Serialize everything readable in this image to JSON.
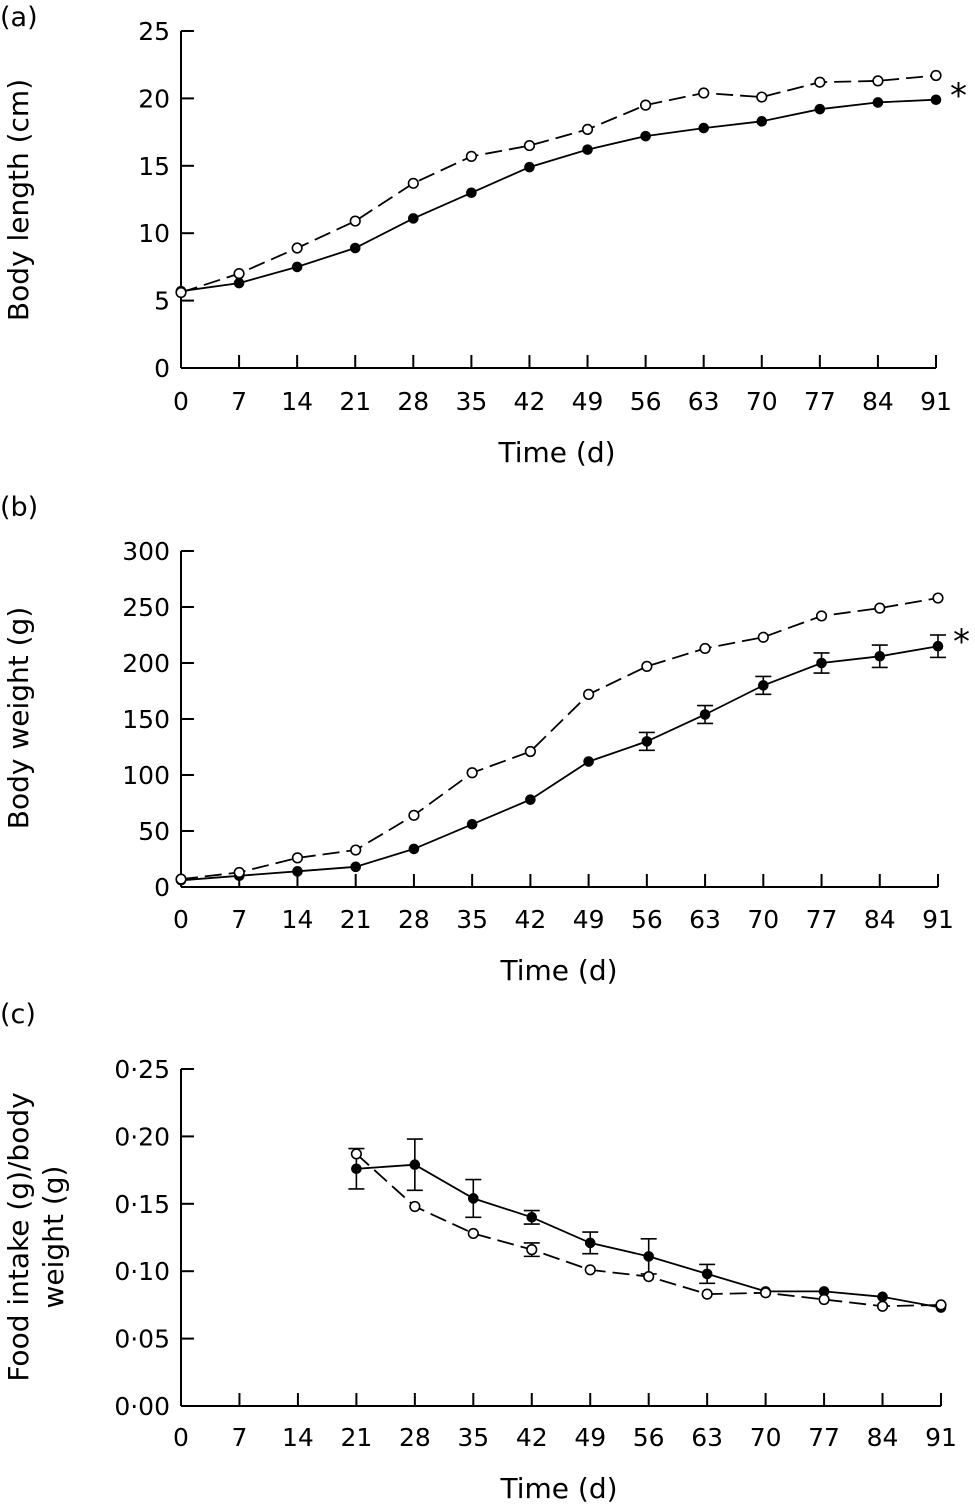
{
  "panels": [
    {
      "label": "(a)",
      "significance": "*",
      "chart_data": {
        "type": "line",
        "xlabel": "Time (d)",
        "ylabel_lines": [
          "Body length (cm)"
        ],
        "xlim": [
          0,
          91
        ],
        "ylim": [
          0,
          25
        ],
        "xticks": [
          0,
          7,
          14,
          21,
          28,
          35,
          42,
          49,
          56,
          63,
          70,
          77,
          84,
          91
        ],
        "yticks": [
          0,
          5,
          10,
          15,
          20,
          25
        ],
        "ytick_labels": [
          "0",
          "5",
          "10",
          "15",
          "20",
          "25"
        ],
        "grid": false,
        "x": [
          0,
          7,
          14,
          21,
          28,
          35,
          42,
          49,
          56,
          63,
          70,
          77,
          84,
          91
        ],
        "series": [
          {
            "marker": "filled-circle",
            "line": "solid",
            "values": [
              5.7,
              6.3,
              7.5,
              8.9,
              11.1,
              13.0,
              14.9,
              16.2,
              17.2,
              17.8,
              18.3,
              19.2,
              19.7,
              19.9
            ]
          },
          {
            "marker": "open-circle",
            "line": "dashed",
            "values": [
              5.6,
              7.0,
              8.9,
              10.9,
              13.7,
              15.7,
              16.5,
              17.7,
              19.5,
              20.4,
              20.1,
              21.2,
              21.3,
              21.7
            ]
          }
        ]
      }
    },
    {
      "label": "(b)",
      "significance": "*",
      "chart_data": {
        "type": "line",
        "xlabel": "Time (d)",
        "ylabel_lines": [
          "Body weight (g)"
        ],
        "xlim": [
          0,
          91
        ],
        "ylim": [
          0,
          300
        ],
        "xticks": [
          0,
          7,
          14,
          21,
          28,
          35,
          42,
          49,
          56,
          63,
          70,
          77,
          84,
          91
        ],
        "yticks": [
          0,
          50,
          100,
          150,
          200,
          250,
          300
        ],
        "ytick_labels": [
          "0",
          "50",
          "100",
          "150",
          "200",
          "250",
          "300"
        ],
        "grid": false,
        "x": [
          0,
          7,
          14,
          21,
          28,
          35,
          42,
          49,
          56,
          63,
          70,
          77,
          84,
          91
        ],
        "series": [
          {
            "marker": "filled-circle",
            "line": "solid",
            "values": [
              6,
              10,
              14,
              18,
              34,
              56,
              78,
              112,
              130,
              154,
              180,
              200,
              206,
              215
            ],
            "errors": [
              0,
              0,
              0,
              0,
              0,
              0,
              0,
              0,
              8,
              8,
              8,
              9,
              10,
              10
            ]
          },
          {
            "marker": "open-circle",
            "line": "dashed",
            "values": [
              7,
              13,
              26,
              33,
              64,
              102,
              121,
              172,
              197,
              213,
              223,
              242,
              249,
              258
            ]
          }
        ]
      }
    },
    {
      "label": "(c)",
      "significance": "",
      "chart_data": {
        "type": "line",
        "xlabel": "Time (d)",
        "ylabel_lines": [
          "Food intake (g)/body",
          "weight (g)"
        ],
        "xlim": [
          0,
          91
        ],
        "ylim": [
          0,
          0.25
        ],
        "xticks": [
          0,
          7,
          14,
          21,
          28,
          35,
          42,
          49,
          56,
          63,
          70,
          77,
          84,
          91
        ],
        "yticks": [
          0,
          0.05,
          0.1,
          0.15,
          0.2,
          0.25
        ],
        "ytick_labels": [
          "0·00",
          "0·05",
          "0·10",
          "0·15",
          "0·20",
          "0·25"
        ],
        "grid": false,
        "x": [
          21,
          28,
          35,
          42,
          49,
          56,
          63,
          70,
          77,
          84,
          91
        ],
        "series": [
          {
            "marker": "filled-circle",
            "line": "solid",
            "values": [
              0.176,
              0.179,
              0.154,
              0.14,
              0.121,
              0.111,
              0.098,
              0.085,
              0.085,
              0.081,
              0.073
            ],
            "errors": [
              0.015,
              0.019,
              0.014,
              0.005,
              0.008,
              0.013,
              0.007,
              0,
              0,
              0,
              0
            ]
          },
          {
            "marker": "open-circle",
            "line": "dashed",
            "values": [
              0.187,
              0.148,
              0.128,
              0.116,
              0.101,
              0.096,
              0.083,
              0.084,
              0.079,
              0.074,
              0.075
            ],
            "errors": [
              0,
              0,
              0,
              0.005,
              0,
              0,
              0,
              0,
              0,
              0,
              0
            ]
          }
        ]
      }
    }
  ]
}
